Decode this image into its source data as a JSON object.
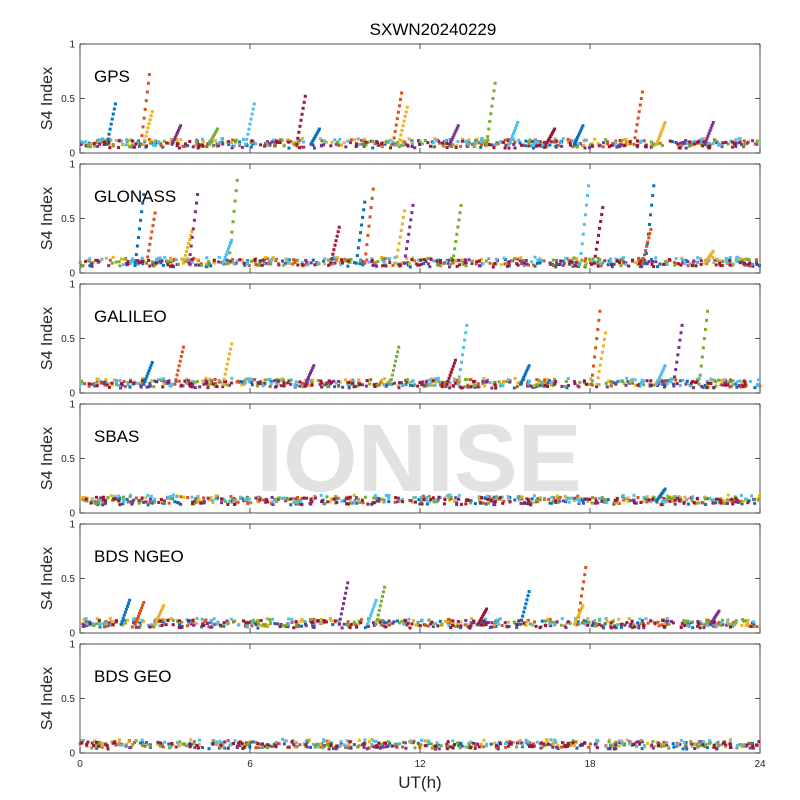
{
  "chart_data": {
    "type": "scatter",
    "title": "SXWN20240229",
    "xlabel": "UT(h)",
    "ylabel": "S4 Index",
    "xlim": [
      0,
      24
    ],
    "ylim": [
      0,
      1
    ],
    "xticks": [
      0,
      6,
      12,
      18,
      24
    ],
    "yticks": [
      0,
      0.5,
      1
    ],
    "watermark": "IONISE",
    "series_colors": [
      "#0072bd",
      "#d95319",
      "#edb120",
      "#7e2f8e",
      "#77ac30",
      "#4dbeee",
      "#a2142f"
    ],
    "panels": [
      {
        "label": "GPS",
        "baseline": 0.08,
        "spikes": [
          {
            "x": 1.2,
            "y": 0.45
          },
          {
            "x": 2.4,
            "y": 0.72
          },
          {
            "x": 2.5,
            "y": 0.38
          },
          {
            "x": 3.5,
            "y": 0.25
          },
          {
            "x": 4.8,
            "y": 0.22
          },
          {
            "x": 6.1,
            "y": 0.45
          },
          {
            "x": 7.9,
            "y": 0.52
          },
          {
            "x": 8.4,
            "y": 0.22
          },
          {
            "x": 11.3,
            "y": 0.55
          },
          {
            "x": 11.5,
            "y": 0.42
          },
          {
            "x": 13.3,
            "y": 0.25
          },
          {
            "x": 14.6,
            "y": 0.64
          },
          {
            "x": 15.4,
            "y": 0.28
          },
          {
            "x": 16.7,
            "y": 0.22
          },
          {
            "x": 17.7,
            "y": 0.25
          },
          {
            "x": 19.8,
            "y": 0.56
          },
          {
            "x": 20.6,
            "y": 0.28
          },
          {
            "x": 22.3,
            "y": 0.28
          }
        ]
      },
      {
        "label": "GLONASS",
        "baseline": 0.09,
        "spikes": [
          {
            "x": 2.2,
            "y": 0.72
          },
          {
            "x": 2.6,
            "y": 0.55
          },
          {
            "x": 3.9,
            "y": 0.38
          },
          {
            "x": 4.1,
            "y": 0.72
          },
          {
            "x": 5.5,
            "y": 0.85
          },
          {
            "x": 5.3,
            "y": 0.3
          },
          {
            "x": 9.1,
            "y": 0.42
          },
          {
            "x": 10.0,
            "y": 0.65
          },
          {
            "x": 10.3,
            "y": 0.77
          },
          {
            "x": 11.4,
            "y": 0.57
          },
          {
            "x": 11.7,
            "y": 0.62
          },
          {
            "x": 13.4,
            "y": 0.62
          },
          {
            "x": 17.9,
            "y": 0.8
          },
          {
            "x": 18.4,
            "y": 0.6
          },
          {
            "x": 20.2,
            "y": 0.8
          },
          {
            "x": 20.1,
            "y": 0.4
          },
          {
            "x": 22.3,
            "y": 0.2
          }
        ]
      },
      {
        "label": "GALILEO",
        "baseline": 0.08,
        "spikes": [
          {
            "x": 2.5,
            "y": 0.28
          },
          {
            "x": 3.6,
            "y": 0.42
          },
          {
            "x": 5.3,
            "y": 0.45
          },
          {
            "x": 8.2,
            "y": 0.25
          },
          {
            "x": 11.2,
            "y": 0.42
          },
          {
            "x": 13.6,
            "y": 0.62
          },
          {
            "x": 13.2,
            "y": 0.3
          },
          {
            "x": 15.8,
            "y": 0.25
          },
          {
            "x": 18.3,
            "y": 0.75
          },
          {
            "x": 18.5,
            "y": 0.55
          },
          {
            "x": 21.2,
            "y": 0.62
          },
          {
            "x": 22.1,
            "y": 0.75
          },
          {
            "x": 20.6,
            "y": 0.25
          }
        ]
      },
      {
        "label": "SBAS",
        "baseline": 0.11,
        "spikes": [
          {
            "x": 20.6,
            "y": 0.22
          }
        ]
      },
      {
        "label": "BDS NGEO",
        "baseline": 0.08,
        "spikes": [
          {
            "x": 1.7,
            "y": 0.3
          },
          {
            "x": 2.2,
            "y": 0.28
          },
          {
            "x": 2.9,
            "y": 0.25
          },
          {
            "x": 9.4,
            "y": 0.46
          },
          {
            "x": 10.7,
            "y": 0.42
          },
          {
            "x": 10.4,
            "y": 0.3
          },
          {
            "x": 14.3,
            "y": 0.22
          },
          {
            "x": 15.8,
            "y": 0.38
          },
          {
            "x": 17.8,
            "y": 0.6
          },
          {
            "x": 17.7,
            "y": 0.25
          },
          {
            "x": 22.5,
            "y": 0.2
          }
        ]
      },
      {
        "label": "BDS GEO",
        "baseline": 0.07,
        "spikes": []
      }
    ]
  }
}
